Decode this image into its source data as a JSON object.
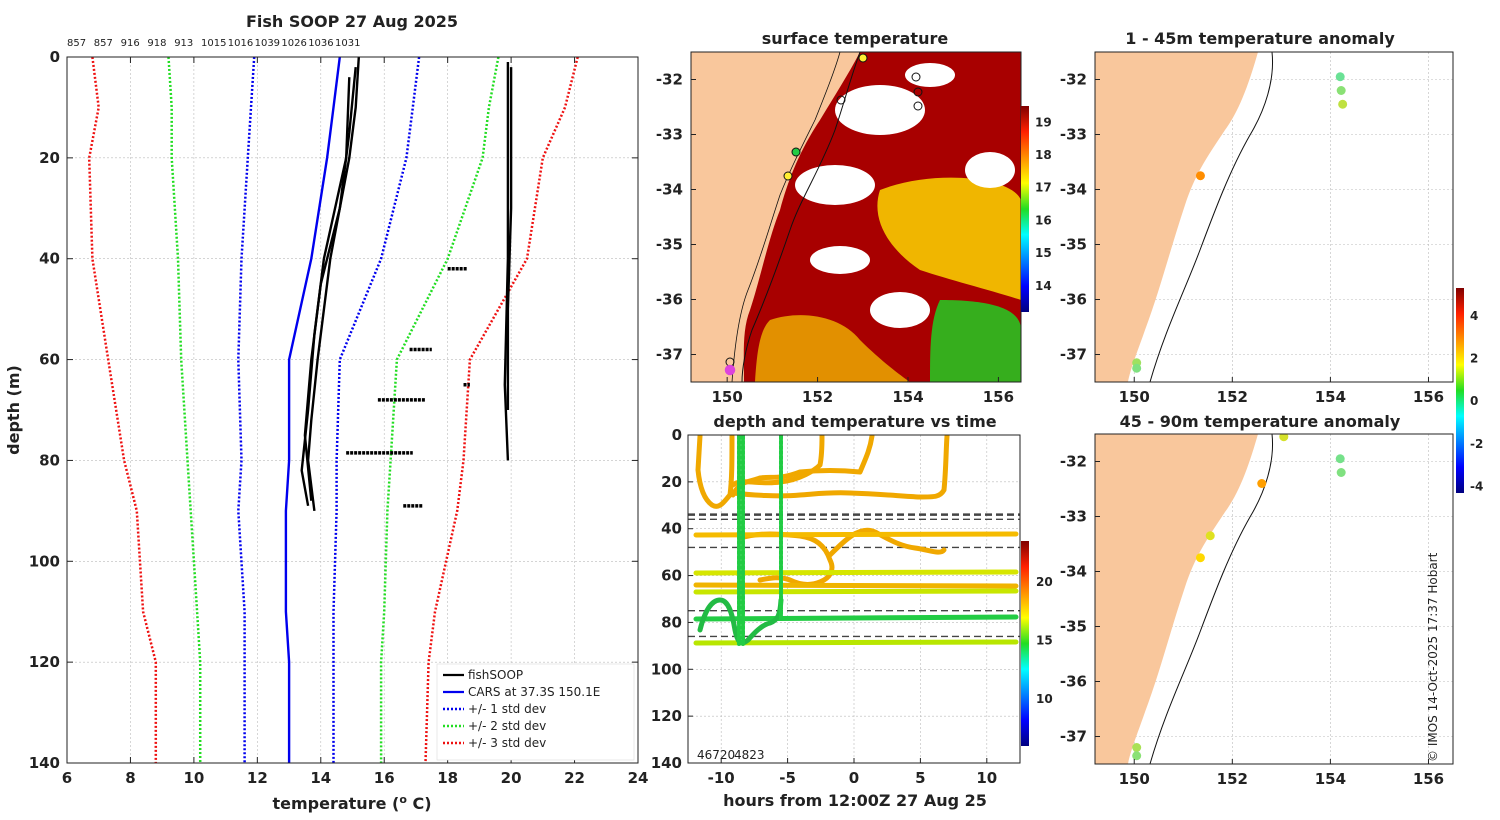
{
  "chart_data": [
    {
      "type": "line",
      "id": "profile",
      "title": "Fish SOOP 27 Aug 2025",
      "xlabel": "temperature (",
      "xlabel_sup": "o",
      "xlabel_tail": " C)",
      "ylabel": "depth (m)",
      "xlim": [
        6,
        24
      ],
      "ylim": [
        0,
        140
      ],
      "xticks": [
        "6",
        "8",
        "10",
        "12",
        "14",
        "16",
        "18",
        "20",
        "22",
        "24"
      ],
      "yticks": [
        "0",
        "20",
        "40",
        "60",
        "80",
        "100",
        "120",
        "140"
      ],
      "top_labels": [
        "857",
        "857",
        "916",
        "918",
        "913",
        "1015",
        "1016",
        "1039",
        "1026",
        "1036",
        "1031"
      ],
      "legend": [
        "fishSOOP",
        "CARS at 37.3S 150.1E",
        "+/- 1 std dev",
        "+/- 2 std dev",
        "+/- 3 std dev"
      ],
      "colors": {
        "fish": "#000000",
        "cars": "#0000ee",
        "std1": "#0000ee",
        "std2": "#22dd22",
        "std3": "#ee1111"
      },
      "depth": [
        0,
        10,
        20,
        40,
        60,
        80,
        90,
        110,
        120,
        140
      ],
      "cars": [
        14.6,
        14.4,
        14.2,
        13.7,
        13.0,
        13.0,
        12.9,
        12.9,
        13.0,
        13.0
      ],
      "std1_lo": [
        11.9,
        11.8,
        11.7,
        11.5,
        11.4,
        11.5,
        11.4,
        11.6,
        11.6,
        11.6
      ],
      "std1_hi": [
        17.1,
        16.9,
        16.7,
        15.9,
        14.6,
        14.5,
        14.5,
        14.4,
        14.4,
        14.4
      ],
      "std2_lo": [
        9.2,
        9.3,
        9.3,
        9.5,
        9.6,
        9.8,
        9.9,
        10.1,
        10.2,
        10.2
      ],
      "std2_hi": [
        19.6,
        19.3,
        19.1,
        18.0,
        16.4,
        16.2,
        16.1,
        16.0,
        15.9,
        15.9
      ],
      "std3_lo": [
        6.8,
        7.0,
        6.7,
        6.8,
        7.3,
        7.8,
        8.2,
        8.4,
        8.8,
        8.8
      ],
      "std3_hi": [
        22.1,
        21.7,
        21.0,
        20.5,
        18.7,
        18.5,
        18.3,
        17.6,
        17.4,
        17.3
      ],
      "fish_profiles": [
        {
          "depth": [
            0,
            10,
            20,
            40,
            60,
            72,
            80,
            90
          ],
          "temp": [
            15.2,
            15.1,
            14.9,
            14.3,
            13.9,
            13.7,
            13.6,
            13.8
          ]
        },
        {
          "depth": [
            2,
            15,
            30,
            45,
            60,
            75,
            88
          ],
          "temp": [
            15.1,
            14.9,
            14.6,
            14.0,
            13.7,
            13.5,
            13.7
          ]
        },
        {
          "depth": [
            4,
            20,
            40,
            55,
            70,
            82,
            89
          ],
          "temp": [
            14.9,
            14.8,
            14.1,
            13.8,
            13.6,
            13.4,
            13.6
          ]
        },
        {
          "depth": [
            1,
            20,
            40,
            65,
            80
          ],
          "temp": [
            19.9,
            19.9,
            19.9,
            19.8,
            19.9
          ]
        },
        {
          "depth": [
            2,
            30,
            50,
            70
          ],
          "temp": [
            20.0,
            20.0,
            19.9,
            19.9
          ]
        }
      ],
      "fish_segments": [
        {
          "depth": 42,
          "t0": 18.0,
          "t1": 18.6
        },
        {
          "depth": 58,
          "t0": 16.8,
          "t1": 17.5
        },
        {
          "depth": 65,
          "t0": 18.5,
          "t1": 18.7
        },
        {
          "depth": 68,
          "t0": 15.8,
          "t1": 17.3
        },
        {
          "depth": 78.5,
          "t0": 14.8,
          "t1": 16.9
        },
        {
          "depth": 89,
          "t0": 16.6,
          "t1": 17.2
        }
      ]
    },
    {
      "type": "heatmap",
      "id": "sst",
      "title": "surface temperature",
      "xlim": [
        149.2,
        156.5
      ],
      "ylim": [
        -37.5,
        -31.5
      ],
      "xticks": [
        "150",
        "152",
        "154",
        "156"
      ],
      "yticks": [
        "-32",
        "-33",
        "-34",
        "-35",
        "-36",
        "-37"
      ],
      "colorbar_range": [
        13.2,
        19.5
      ],
      "colorbar_ticks": [
        "14",
        "15",
        "16",
        "17",
        "18",
        "19"
      ]
    },
    {
      "type": "scatter",
      "id": "anom1",
      "title": "1 - 45m temperature anomaly",
      "xlim": [
        149.2,
        156.5
      ],
      "ylim": [
        -37.5,
        -31.5
      ],
      "xticks": [
        "150",
        "152",
        "154",
        "156"
      ],
      "yticks": [
        "-32",
        "-33",
        "-34",
        "-35",
        "-36",
        "-37"
      ],
      "points": [
        {
          "lon": 154.2,
          "lat": -31.95,
          "anom": 0.3
        },
        {
          "lon": 154.22,
          "lat": -32.2,
          "anom": 0.6
        },
        {
          "lon": 154.25,
          "lat": -32.45,
          "anom": 1.1
        },
        {
          "lon": 151.35,
          "lat": -33.75,
          "anom": 2.6
        },
        {
          "lon": 150.05,
          "lat": -37.15,
          "anom": 0.8
        },
        {
          "lon": 150.05,
          "lat": -37.25,
          "anom": 0.5
        }
      ]
    },
    {
      "type": "scatter",
      "id": "anom2",
      "title": "45 - 90m temperature anomaly",
      "xlim": [
        149.2,
        156.5
      ],
      "ylim": [
        -37.5,
        -31.5
      ],
      "xticks": [
        "150",
        "152",
        "154",
        "156"
      ],
      "yticks": [
        "-32",
        "-33",
        "-34",
        "-35",
        "-36",
        "-37"
      ],
      "points": [
        {
          "lon": 153.05,
          "lat": -31.55,
          "anom": 1.3
        },
        {
          "lon": 154.2,
          "lat": -31.95,
          "anom": 0.4
        },
        {
          "lon": 154.22,
          "lat": -32.2,
          "anom": 0.5
        },
        {
          "lon": 152.6,
          "lat": -32.4,
          "anom": 2.4
        },
        {
          "lon": 151.55,
          "lat": -33.35,
          "anom": 1.4
        },
        {
          "lon": 151.35,
          "lat": -33.75,
          "anom": 1.8
        },
        {
          "lon": 150.05,
          "lat": -37.2,
          "anom": 0.9
        },
        {
          "lon": 150.05,
          "lat": -37.35,
          "anom": 0.6
        }
      ],
      "colorbar_range": [
        -4.3,
        5.3
      ],
      "colorbar_ticks": [
        "4",
        "2",
        "0",
        "-2",
        "-4"
      ]
    },
    {
      "type": "scatter",
      "id": "timeseries",
      "title": "depth and temperature vs time",
      "xlabel": "hours from 12:00Z 27 Aug 25",
      "xlim": [
        -12.5,
        12.5
      ],
      "ylim": [
        0,
        140
      ],
      "xticks": [
        "-10",
        "-5",
        "0",
        "5",
        "10"
      ],
      "yticks": [
        "0",
        "20",
        "40",
        "60",
        "80",
        "100",
        "120",
        "140"
      ],
      "colorbar_range": [
        6,
        23.5
      ],
      "colorbar_ticks": [
        "20",
        "15",
        "10"
      ],
      "overlap_text": "46720",
      "corner_text": "4823",
      "dashed_depths": [
        34,
        36,
        48,
        75,
        86
      ]
    }
  ],
  "footer": "© IMOS 14-Oct-2025 17:37 Hobart"
}
